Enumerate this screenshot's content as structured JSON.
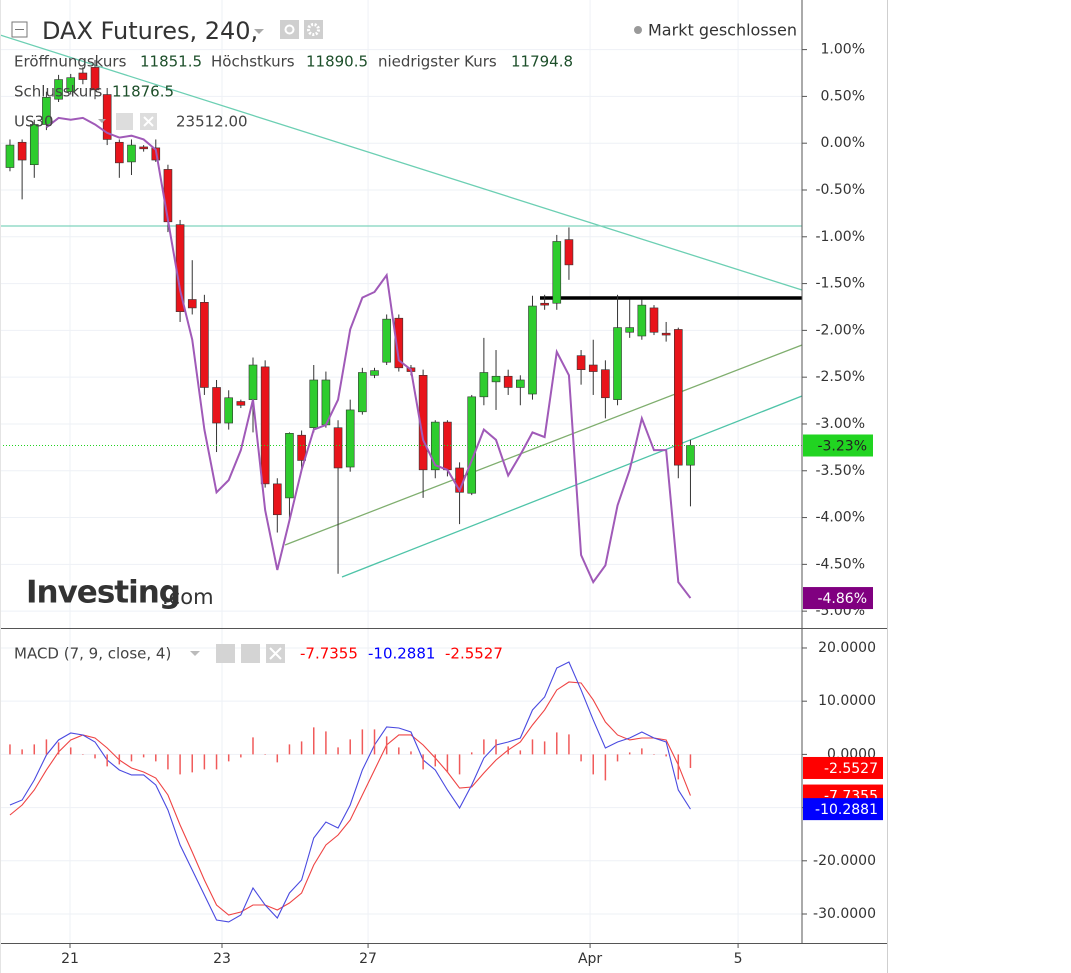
{
  "chart_data": [
    {
      "type": "candlestick",
      "title": "DAX Futures, 240,",
      "status": "Markt geschlossen",
      "ohlc_legend": [
        {
          "label": "Eröffnungskurs",
          "value": "11851.5"
        },
        {
          "label": "Höchstkurs",
          "value": "11890.5"
        },
        {
          "label": "niedrigster Kurs",
          "value": "11794.8"
        },
        {
          "label": "Schlusskurs",
          "value": "11876.5"
        }
      ],
      "watermark": [
        "Investing",
        ".com"
      ],
      "x": [
        0,
        1,
        2,
        3,
        4,
        5,
        6,
        7,
        8,
        9,
        10,
        11,
        12,
        13,
        14,
        15,
        16,
        17,
        18,
        19,
        20,
        21,
        22,
        23,
        24,
        25,
        26,
        27,
        28,
        29,
        30,
        31,
        32,
        33,
        34,
        35,
        36,
        37,
        38,
        39,
        40,
        41,
        42,
        43,
        44,
        45,
        46,
        47,
        48,
        49,
        50,
        51,
        52,
        53,
        54,
        55,
        56
      ],
      "xlim": [
        -0.82,
        65.18
      ],
      "ylim": [
        -5.18,
        1.53
      ],
      "yticks": [
        {
          "value": 1,
          "label": "1.00%"
        },
        {
          "value": 0.5,
          "label": "0.50%"
        },
        {
          "value": 0,
          "label": "0.00%"
        },
        {
          "value": -0.5,
          "label": "-0.50%"
        },
        {
          "value": -1,
          "label": "-1.00%"
        },
        {
          "value": -1.5,
          "label": "-1.50%"
        },
        {
          "value": -2,
          "label": "-2.00%"
        },
        {
          "value": -2.5,
          "label": "-2.50%"
        },
        {
          "value": -3,
          "label": "-3.00%"
        },
        {
          "value": -3.5,
          "label": "-3.50%"
        },
        {
          "value": -4,
          "label": "-4.00%"
        },
        {
          "value": -4.5,
          "label": "-4.50%"
        },
        {
          "value": -5,
          "label": "-5.00%"
        }
      ],
      "grid": true,
      "series": [
        {
          "type": "candlestick",
          "up_color": "#2ecc2e",
          "down_color": "#e8141b",
          "tag_color": "#21d421",
          "open": [
            -0.26,
            0.01,
            -0.23,
            0.2,
            0.47,
            0.55,
            0.75,
            0.81,
            0.52,
            0.01,
            -0.2,
            -0.04,
            -0.05,
            -0.28,
            -0.87,
            -1.67,
            -1.7,
            -2.61,
            -2.99,
            -2.76,
            -2.74,
            -2.39,
            -3.64,
            -3.79,
            -3.12,
            -3.04,
            -3.01,
            -3.04,
            -3.46,
            -2.87,
            -2.48,
            -2.34,
            -1.87,
            -2.4,
            -2.48,
            -3.49,
            -2.98,
            -3.47,
            -3.74,
            -2.71,
            -2.55,
            -2.49,
            -2.61,
            -2.68,
            -1.71,
            -1.71,
            -1.03,
            -2.27,
            -2.37,
            -2.42,
            -2.74,
            -2.02,
            -2.06,
            -1.76,
            -2.03,
            -1.99,
            -3.44
          ],
          "high": [
            0.04,
            0.04,
            0.25,
            0.55,
            0.73,
            0.74,
            0.81,
            0.89,
            0.59,
            0.04,
            0.04,
            -0.02,
            0.04,
            -0.23,
            -0.82,
            -1.25,
            -1.62,
            -2.53,
            -2.64,
            -2.74,
            -2.29,
            -2.32,
            -3.58,
            -3.09,
            -3.07,
            -2.37,
            -2.44,
            -2.96,
            -2.74,
            -2.4,
            -2.4,
            -1.83,
            -1.83,
            -2.37,
            -2.42,
            -2.96,
            -2.96,
            -3.41,
            -2.69,
            -2.08,
            -2.21,
            -2.42,
            -2.48,
            -1.63,
            -1.62,
            -0.98,
            -0.9,
            -2.21,
            -2.1,
            -2.32,
            -1.62,
            -1.67,
            -1.67,
            -1.73,
            -1.91,
            -1.97,
            -3.17
          ],
          "low": [
            -0.3,
            -0.6,
            -0.37,
            0.14,
            0.44,
            0.52,
            0.63,
            0.47,
            -0.02,
            -0.37,
            -0.34,
            -0.09,
            -0.2,
            -0.95,
            -1.91,
            -1.83,
            -2.69,
            -3.3,
            -3.06,
            -2.83,
            -3.09,
            -3.68,
            -4.16,
            -4.01,
            -3.49,
            -3.09,
            -3.04,
            -4.6,
            -3.51,
            -2.9,
            -2.51,
            -2.37,
            -2.44,
            -2.48,
            -3.79,
            -3.58,
            -3.56,
            -4.07,
            -3.76,
            -2.8,
            -2.85,
            -2.69,
            -2.8,
            -2.74,
            -1.78,
            -1.78,
            -1.46,
            -2.58,
            -2.69,
            -2.94,
            -2.8,
            -2.08,
            -2.1,
            -2.05,
            -2.12,
            -3.58,
            -3.88
          ],
          "close": [
            -0.02,
            -0.18,
            0.2,
            0.49,
            0.68,
            0.7,
            0.68,
            0.57,
            0.04,
            -0.21,
            -0.02,
            -0.06,
            -0.18,
            -0.84,
            -1.8,
            -1.76,
            -2.61,
            -2.99,
            -2.72,
            -2.8,
            -2.37,
            -3.64,
            -3.97,
            -3.1,
            -3.39,
            -2.53,
            -2.53,
            -3.47,
            -2.85,
            -2.45,
            -2.43,
            -1.88,
            -2.4,
            -2.44,
            -3.49,
            -2.98,
            -3.49,
            -3.73,
            -2.71,
            -2.45,
            -2.49,
            -2.61,
            -2.53,
            -1.74,
            -1.73,
            -1.05,
            -1.3,
            -2.42,
            -2.44,
            -2.72,
            -1.97,
            -1.97,
            -1.73,
            -2.02,
            -2.05,
            -3.44,
            -3.23
          ],
          "last_label": "-3.23%"
        },
        {
          "type": "line",
          "name": "US30",
          "legend_value": "23512.00",
          "color": "#a05ab8",
          "tag_color": "#800080",
          "values": [
            null,
            null,
            null,
            0.17,
            0.27,
            0.25,
            0.27,
            0.2,
            0.11,
            0.06,
            0.08,
            0.04,
            -0.07,
            -0.82,
            -1.57,
            -2.1,
            -3.06,
            -3.73,
            -3.6,
            -3.28,
            -2.74,
            -3.92,
            -4.56,
            -4.03,
            -3.49,
            -3.06,
            -3.01,
            -2.74,
            -1.99,
            -1.65,
            -1.59,
            -1.41,
            -2.32,
            -2.42,
            -3.17,
            -3.44,
            -3.49,
            -3.71,
            -3.39,
            -3.06,
            -3.17,
            -3.55,
            -3.33,
            -3.09,
            -3.14,
            -2.23,
            -2.48,
            -4.4,
            -4.69,
            -4.51,
            -3.87,
            -3.49,
            -2.94,
            -3.28,
            -3.28,
            -4.69,
            -4.86
          ],
          "last_label": "-4.86%"
        }
      ]
    },
    {
      "type": "line",
      "title": "MACD (7, 9, close, 4)",
      "x": [
        0,
        1,
        2,
        3,
        4,
        5,
        6,
        7,
        8,
        9,
        10,
        11,
        12,
        13,
        14,
        15,
        16,
        17,
        18,
        19,
        20,
        21,
        22,
        23,
        24,
        25,
        26,
        27,
        28,
        29,
        30,
        31,
        32,
        33,
        34,
        35,
        36,
        37,
        38,
        39,
        40,
        41,
        42,
        43,
        44,
        45,
        46,
        47,
        48,
        49,
        50,
        51,
        52,
        53,
        54,
        55,
        56
      ],
      "xlim": [
        -0.82,
        65.18
      ],
      "ylim": [
        -35.45,
        23.38
      ],
      "yticks": [
        {
          "value": 20,
          "label": "20.0000"
        },
        {
          "value": 10,
          "label": "10.0000"
        },
        {
          "value": 0,
          "label": "0.0000"
        },
        {
          "value": -10,
          "label": "-10.0000"
        },
        {
          "value": -20,
          "label": "-20.0000"
        },
        {
          "value": -30,
          "label": "-30.0000"
        }
      ],
      "xticks": [
        {
          "value": 4.94,
          "label": "21"
        },
        {
          "value": 17.45,
          "label": "23"
        },
        {
          "value": 29.47,
          "label": "27"
        },
        {
          "value": 47.74,
          "label": "Apr"
        },
        {
          "value": 59.92,
          "label": "5"
        }
      ],
      "grid": true,
      "series": [
        {
          "type": "line",
          "color": "#ef4444",
          "tag_color": "#ff0000",
          "values": [
            -11.39,
            -9.51,
            -6.69,
            -2.93,
            0.45,
            2.71,
            3.65,
            3.08,
            1.2,
            -1.05,
            -2.56,
            -3.31,
            -4.44,
            -7.63,
            -13.27,
            -18.35,
            -23.61,
            -28.31,
            -30.19,
            -29.62,
            -28.31,
            -28.31,
            -29.25,
            -27.93,
            -26.05,
            -20.79,
            -17.03,
            -15.15,
            -12.33,
            -7.63,
            -2.93,
            1.77,
            3.65,
            3.65,
            1.77,
            -0.68,
            -3.31,
            -6.32,
            -6.13,
            -3.5,
            -1.05,
            0.83,
            2.33,
            5.53,
            8.35,
            12.11,
            13.61,
            13.42,
            10.23,
            6.09,
            3.65,
            2.71,
            3.08,
            3.08,
            2.71,
            -1.99,
            -7.7355
          ]
        },
        {
          "type": "line",
          "color": "#4a4ae0",
          "tag_color": "#0000ff",
          "values": [
            -9.51,
            -8.57,
            -4.81,
            -0.11,
            2.71,
            4.02,
            3.65,
            2.33,
            -1.05,
            -2.93,
            -3.87,
            -3.87,
            -5.75,
            -10.45,
            -17.03,
            -21.73,
            -26.43,
            -31.13,
            -31.5,
            -30.19,
            -25.11,
            -28.31,
            -30.75,
            -26.05,
            -23.61,
            -15.71,
            -12.71,
            -13.83,
            -9.51,
            -2.93,
            1.77,
            5.15,
            4.96,
            4.21,
            -1.05,
            -2.93,
            -6.69,
            -10.08,
            -5.75,
            -0.68,
            1.77,
            2.33,
            3.08,
            8.35,
            10.79,
            16.24,
            17.37,
            12.11,
            6.47,
            1.2,
            2.33,
            3.08,
            4.21,
            3.08,
            2.33,
            -6.69,
            -10.2881
          ]
        },
        {
          "type": "bar",
          "color": "#f05a5a",
          "tag_color": "#ff0000",
          "values": [
            1.88,
            0.94,
            1.88,
            2.82,
            2.26,
            1.31,
            0.0,
            -0.75,
            -2.25,
            -1.88,
            -1.31,
            -0.56,
            -1.31,
            -2.82,
            -3.76,
            -3.38,
            -2.82,
            -2.82,
            -1.31,
            -0.57,
            3.2,
            0.0,
            -1.5,
            1.88,
            2.44,
            5.08,
            4.32,
            1.32,
            2.82,
            4.7,
            4.7,
            3.38,
            1.31,
            0.56,
            -2.82,
            -2.25,
            -3.38,
            -3.76,
            0.38,
            2.82,
            2.82,
            1.5,
            0.75,
            2.82,
            2.44,
            4.13,
            3.76,
            -1.31,
            -3.76,
            -4.89,
            -1.32,
            0.37,
            1.13,
            0.0,
            -0.38,
            -4.7,
            -2.5527
          ]
        }
      ]
    }
  ]
}
